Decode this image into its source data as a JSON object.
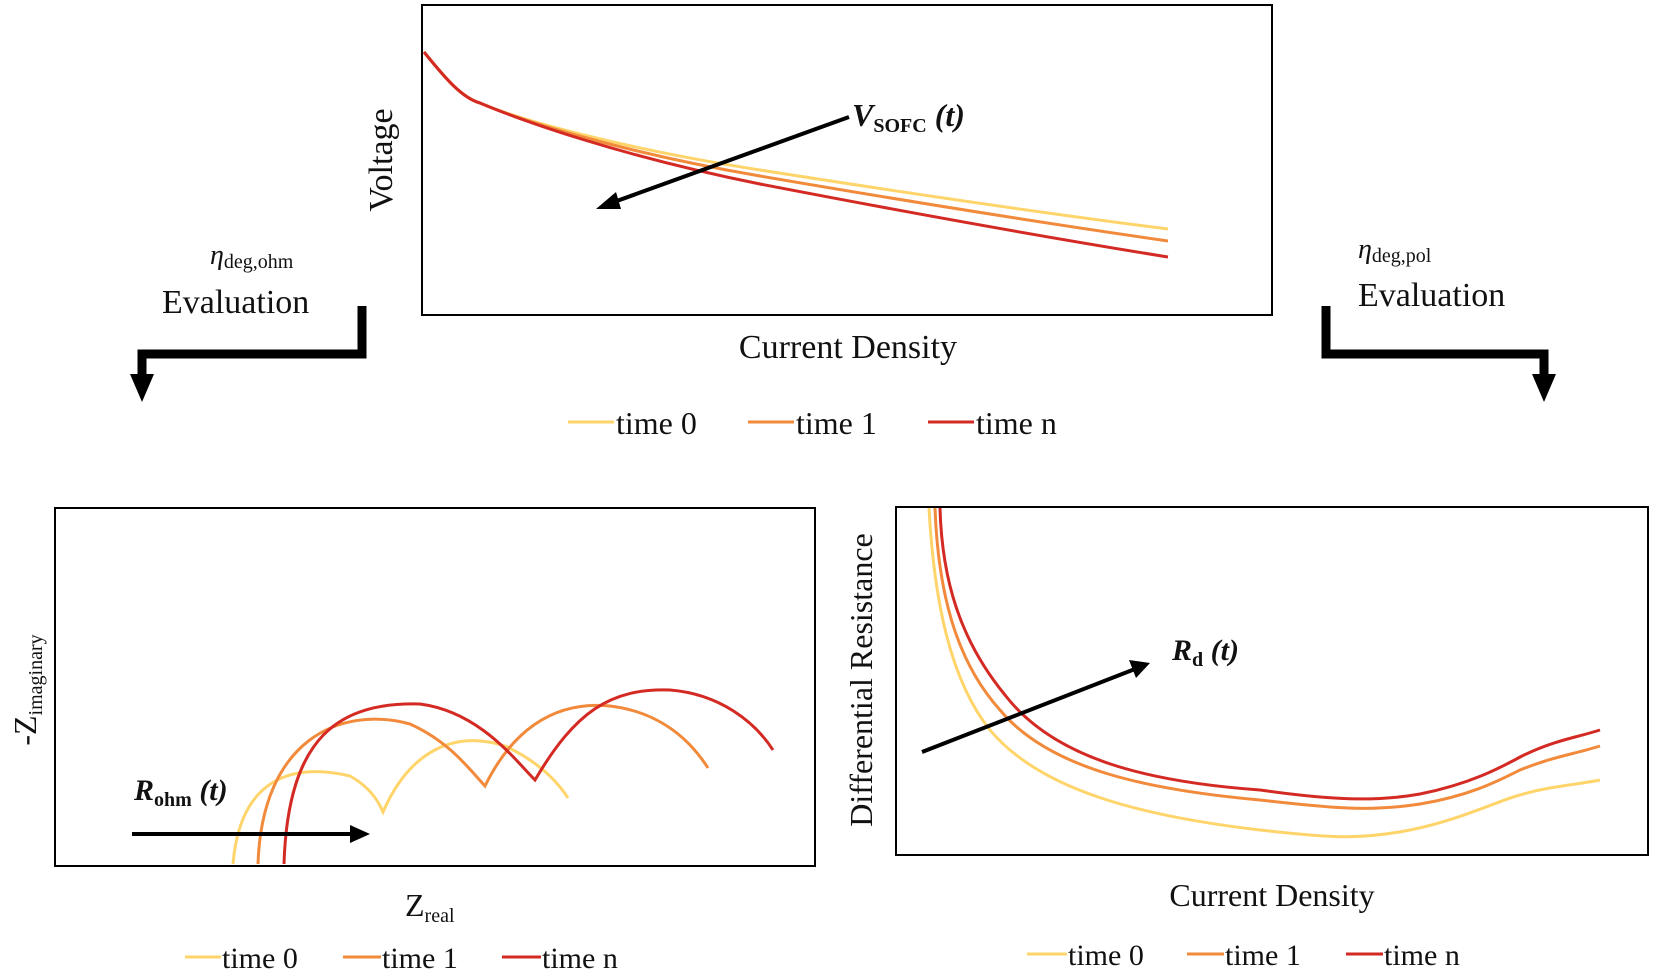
{
  "colors": {
    "time0": "#FFD56B",
    "time1": "#F28A3C",
    "timen": "#D42A24",
    "arrow": "#000000"
  },
  "legend": {
    "time0": "time 0",
    "time1": "time 1",
    "timen": "time n"
  },
  "top_panel": {
    "ylabel": "Voltage",
    "xlabel": "Current Density",
    "annotation": {
      "main": "V",
      "sub": "SOFC",
      "suffix": " (t)"
    }
  },
  "left_eval": {
    "eta": "η",
    "sub": "deg,ohm",
    "label": "Evaluation"
  },
  "right_eval": {
    "eta": "η",
    "sub": "deg,pol",
    "label": "Evaluation"
  },
  "bottom_left_panel": {
    "ylabel_prefix": "-Z",
    "ylabel_sub": "imaginary",
    "xlabel_main": "Z",
    "xlabel_sub": "real",
    "annotation": {
      "main": "R",
      "sub": "ohm",
      "suffix": " (t)"
    }
  },
  "bottom_right_panel": {
    "ylabel": "Differential Resistance",
    "xlabel": "Current Density",
    "annotation": {
      "main": "R",
      "sub": "d",
      "suffix": " (t)"
    }
  }
}
